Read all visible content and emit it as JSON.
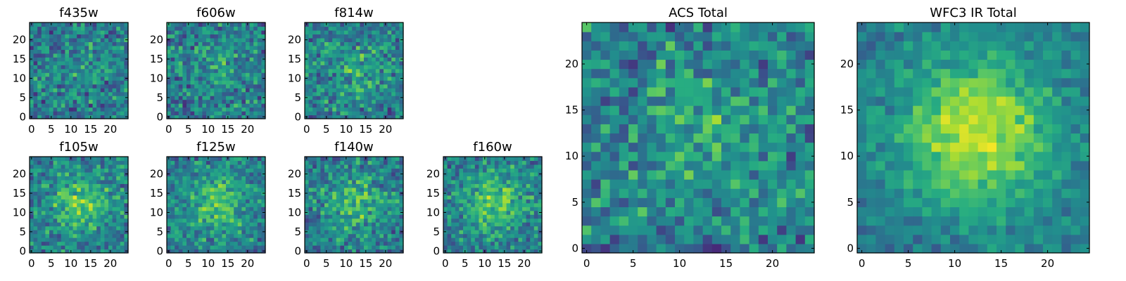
{
  "chart_data": [
    {
      "type": "heatmap",
      "title": "f435w",
      "colormap": "viridis",
      "seed": 11,
      "blob": 0.1,
      "noise": 1.0,
      "xlim": [
        0,
        24
      ],
      "ylim": [
        0,
        24
      ],
      "xticks": [
        0,
        5,
        10,
        15,
        20
      ],
      "yticks": [
        0,
        5,
        10,
        15,
        20
      ],
      "xtick_labels": [
        "0",
        "5",
        "10",
        "15",
        "20"
      ],
      "ytick_labels": [
        "0",
        "5",
        "10",
        "15",
        "20"
      ]
    },
    {
      "type": "heatmap",
      "title": "f606w",
      "colormap": "viridis",
      "seed": 23,
      "blob": 0.2,
      "noise": 1.0,
      "xlim": [
        0,
        24
      ],
      "ylim": [
        0,
        24
      ],
      "xticks": [
        0,
        5,
        10,
        15,
        20
      ],
      "yticks": [
        0,
        5,
        10,
        15,
        20
      ],
      "xtick_labels": [
        "0",
        "5",
        "10",
        "15",
        "20"
      ],
      "ytick_labels": [
        "0",
        "5",
        "10",
        "15",
        "20"
      ]
    },
    {
      "type": "heatmap",
      "title": "f814w",
      "colormap": "viridis",
      "seed": 37,
      "blob": 0.35,
      "noise": 1.0,
      "xlim": [
        0,
        24
      ],
      "ylim": [
        0,
        24
      ],
      "xticks": [
        0,
        5,
        10,
        15,
        20
      ],
      "yticks": [
        0,
        5,
        10,
        15,
        20
      ],
      "xtick_labels": [
        "0",
        "5",
        "10",
        "15",
        "20"
      ],
      "ytick_labels": [
        "0",
        "5",
        "10",
        "15",
        "20"
      ]
    },
    {
      "type": "heatmap",
      "title": "f105w",
      "colormap": "viridis",
      "seed": 41,
      "blob": 0.6,
      "noise": 0.9,
      "xlim": [
        0,
        24
      ],
      "ylim": [
        0,
        24
      ],
      "xticks": [
        0,
        5,
        10,
        15,
        20
      ],
      "yticks": [
        0,
        5,
        10,
        15,
        20
      ],
      "xtick_labels": [
        "0",
        "5",
        "10",
        "15",
        "20"
      ],
      "ytick_labels": [
        "0",
        "5",
        "10",
        "15",
        "20"
      ]
    },
    {
      "type": "heatmap",
      "title": "f125w",
      "colormap": "viridis",
      "seed": 53,
      "blob": 0.6,
      "noise": 0.9,
      "xlim": [
        0,
        24
      ],
      "ylim": [
        0,
        24
      ],
      "xticks": [
        0,
        5,
        10,
        15,
        20
      ],
      "yticks": [
        0,
        5,
        10,
        15,
        20
      ],
      "xtick_labels": [
        "0",
        "5",
        "10",
        "15",
        "20"
      ],
      "ytick_labels": [
        "0",
        "5",
        "10",
        "15",
        "20"
      ]
    },
    {
      "type": "heatmap",
      "title": "f140w",
      "colormap": "viridis",
      "seed": 67,
      "blob": 0.5,
      "noise": 0.9,
      "xlim": [
        0,
        24
      ],
      "ylim": [
        0,
        24
      ],
      "xticks": [
        0,
        5,
        10,
        15,
        20
      ],
      "yticks": [
        0,
        5,
        10,
        15,
        20
      ],
      "xtick_labels": [
        "0",
        "5",
        "10",
        "15",
        "20"
      ],
      "ytick_labels": [
        "0",
        "5",
        "10",
        "15",
        "20"
      ]
    },
    {
      "type": "heatmap",
      "title": "f160w",
      "colormap": "viridis",
      "seed": 79,
      "blob": 0.65,
      "noise": 0.9,
      "xlim": [
        0,
        24
      ],
      "ylim": [
        0,
        24
      ],
      "xticks": [
        0,
        5,
        10,
        15,
        20
      ],
      "yticks": [
        0,
        5,
        10,
        15,
        20
      ],
      "xtick_labels": [
        "0",
        "5",
        "10",
        "15",
        "20"
      ],
      "ytick_labels": [
        "0",
        "5",
        "10",
        "15",
        "20"
      ]
    },
    {
      "type": "heatmap",
      "title": "ACS Total",
      "colormap": "viridis",
      "seed": 97,
      "blob": 0.35,
      "noise": 1.0,
      "xlim": [
        0,
        24
      ],
      "ylim": [
        0,
        24
      ],
      "xticks": [
        0,
        5,
        10,
        15,
        20
      ],
      "yticks": [
        0,
        5,
        10,
        15,
        20
      ],
      "xtick_labels": [
        "0",
        "5",
        "10",
        "15",
        "20"
      ],
      "ytick_labels": [
        "0",
        "5",
        "10",
        "15",
        "20"
      ]
    },
    {
      "type": "heatmap",
      "title": "WFC3 IR Total",
      "colormap": "viridis",
      "seed": 113,
      "blob": 1.0,
      "noise": 0.55,
      "xlim": [
        0,
        24
      ],
      "ylim": [
        0,
        24
      ],
      "xticks": [
        0,
        5,
        10,
        15,
        20
      ],
      "yticks": [
        0,
        5,
        10,
        15,
        20
      ],
      "xtick_labels": [
        "0",
        "5",
        "10",
        "15",
        "20"
      ],
      "ytick_labels": [
        "0",
        "5",
        "10",
        "15",
        "20"
      ]
    }
  ]
}
